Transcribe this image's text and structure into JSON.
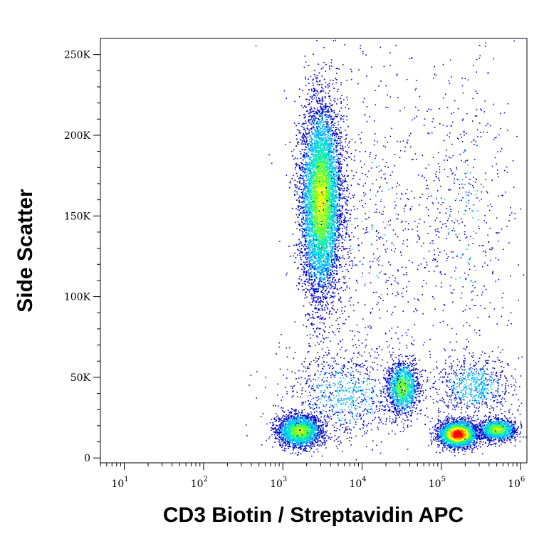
{
  "chart_data": {
    "type": "scatter",
    "subtype": "flow-cytometry-density-dot-plot",
    "title": "",
    "xlabel": "CD3 Biotin / Streptavidin APC",
    "ylabel": "Side Scatter",
    "x_scale": "log",
    "xlim": [
      5,
      1200000
    ],
    "ylim": [
      -3000,
      260000
    ],
    "x_ticks": [
      {
        "value": 10,
        "base": "10",
        "exp": "1"
      },
      {
        "value": 100,
        "base": "10",
        "exp": "2"
      },
      {
        "value": 1000,
        "base": "10",
        "exp": "3"
      },
      {
        "value": 10000,
        "base": "10",
        "exp": "4"
      },
      {
        "value": 100000,
        "base": "10",
        "exp": "5"
      },
      {
        "value": 1000000,
        "base": "10",
        "exp": "6"
      }
    ],
    "y_ticks": [
      {
        "value": 0,
        "label": "0"
      },
      {
        "value": 50000,
        "label": "50K"
      },
      {
        "value": 100000,
        "label": "100K"
      },
      {
        "value": 150000,
        "label": "150K"
      },
      {
        "value": 200000,
        "label": "200K"
      },
      {
        "value": 250000,
        "label": "250K"
      }
    ],
    "grid": false,
    "legend": "none",
    "colormap": [
      "#0000c8",
      "#00b4ff",
      "#00e6c8",
      "#64ff32",
      "#ffff00",
      "#ff8c00",
      "#ff0000"
    ],
    "populations": [
      {
        "x_center": 3000,
        "y_center": 160000,
        "x_spread_log10": 0.13,
        "y_spread": 30000,
        "count": 9000,
        "peak_density": 0.62
      },
      {
        "x_center": 1600,
        "y_center": 17000,
        "x_spread_log10": 0.14,
        "y_spread": 5000,
        "count": 2200,
        "peak_density": 0.6
      },
      {
        "x_center": 32000,
        "y_center": 44000,
        "x_spread_log10": 0.1,
        "y_spread": 8000,
        "count": 1400,
        "peak_density": 0.55
      },
      {
        "x_center": 160000,
        "y_center": 15000,
        "x_spread_log10": 0.12,
        "y_spread": 4000,
        "count": 2800,
        "peak_density": 1.0
      },
      {
        "x_center": 500000,
        "y_center": 18000,
        "x_spread_log10": 0.12,
        "y_spread": 3500,
        "count": 1200,
        "peak_density": 0.6
      },
      {
        "x_center": 250000,
        "y_center": 45000,
        "x_spread_log10": 0.25,
        "y_spread": 9000,
        "count": 700,
        "peak_density": 0.25
      },
      {
        "x_center": 200000,
        "y_center": 150000,
        "x_spread_log10": 0.3,
        "y_spread": 50000,
        "count": 500,
        "peak_density": 0.15
      },
      {
        "x_center": 15000,
        "y_center": 140000,
        "x_spread_log10": 0.45,
        "y_spread": 55000,
        "count": 700,
        "peak_density": 0.12
      },
      {
        "x_center": 6000,
        "y_center": 40000,
        "x_spread_log10": 0.4,
        "y_spread": 15000,
        "count": 900,
        "peak_density": 0.2
      }
    ]
  }
}
